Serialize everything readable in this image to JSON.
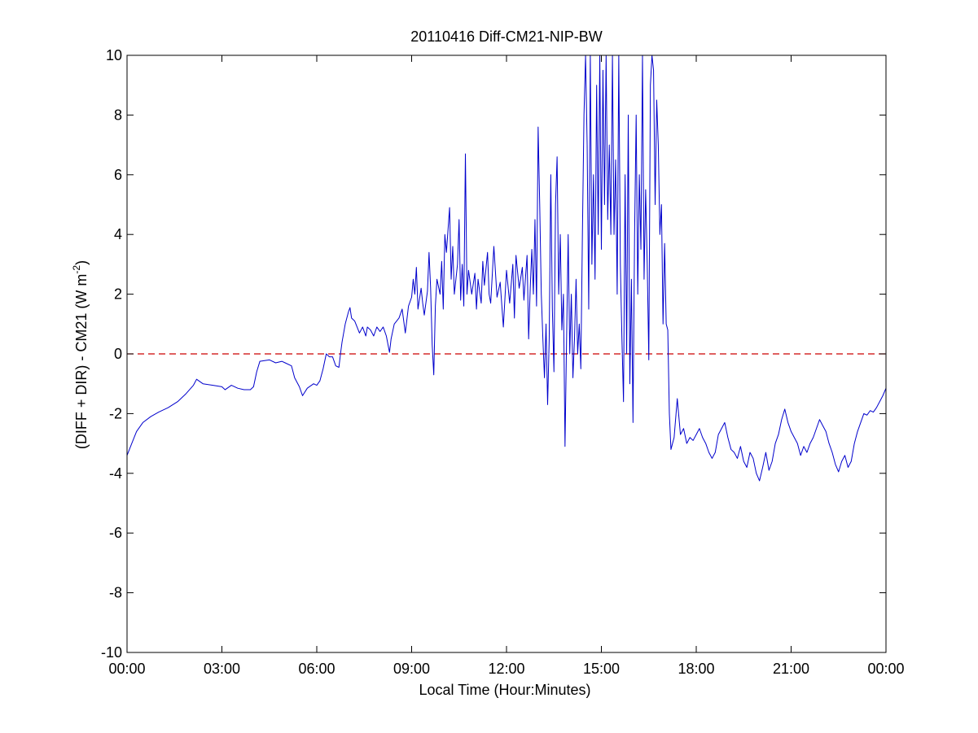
{
  "chart_data": {
    "type": "line",
    "title": "20110416 Diff-CM21-NIP-BW",
    "xlabel": "Local Time (Hour:Minutes)",
    "ylabel": {
      "text": "(DIFF + DIR) - CM21 (W m",
      "superscript": "-2",
      "suffix": ")"
    },
    "ylim": [
      -10,
      10
    ],
    "xlim_hours": [
      0,
      24
    ],
    "x_tick_labels": [
      "00:00",
      "03:00",
      "06:00",
      "09:00",
      "12:00",
      "15:00",
      "18:00",
      "21:00",
      "00:00"
    ],
    "y_tick_labels": [
      "-10",
      "-8",
      "-6",
      "-4",
      "-2",
      "0",
      "2",
      "4",
      "6",
      "8",
      "10"
    ],
    "grid": false,
    "reference_line": {
      "y": 0,
      "style": "dashed",
      "color": "#cc0000"
    },
    "series": [
      {
        "color": "#0000cc",
        "points": [
          [
            0.0,
            -3.4
          ],
          [
            0.15,
            -3.0
          ],
          [
            0.3,
            -2.6
          ],
          [
            0.5,
            -2.3
          ],
          [
            0.75,
            -2.1
          ],
          [
            1.0,
            -1.95
          ],
          [
            1.3,
            -1.8
          ],
          [
            1.6,
            -1.6
          ],
          [
            1.85,
            -1.35
          ],
          [
            2.1,
            -1.05
          ],
          [
            2.2,
            -0.85
          ],
          [
            2.4,
            -1.0
          ],
          [
            2.7,
            -1.05
          ],
          [
            3.0,
            -1.1
          ],
          [
            3.1,
            -1.2
          ],
          [
            3.3,
            -1.05
          ],
          [
            3.5,
            -1.15
          ],
          [
            3.7,
            -1.2
          ],
          [
            3.9,
            -1.2
          ],
          [
            4.0,
            -1.1
          ],
          [
            4.1,
            -0.6
          ],
          [
            4.2,
            -0.25
          ],
          [
            4.5,
            -0.2
          ],
          [
            4.7,
            -0.3
          ],
          [
            4.9,
            -0.25
          ],
          [
            5.0,
            -0.3
          ],
          [
            5.2,
            -0.4
          ],
          [
            5.3,
            -0.8
          ],
          [
            5.45,
            -1.1
          ],
          [
            5.55,
            -1.4
          ],
          [
            5.7,
            -1.15
          ],
          [
            5.9,
            -1.0
          ],
          [
            6.0,
            -1.05
          ],
          [
            6.1,
            -0.9
          ],
          [
            6.2,
            -0.5
          ],
          [
            6.3,
            0.0
          ],
          [
            6.4,
            -0.1
          ],
          [
            6.5,
            -0.1
          ],
          [
            6.6,
            -0.4
          ],
          [
            6.7,
            -0.45
          ],
          [
            6.75,
            0.0
          ],
          [
            6.8,
            0.4
          ],
          [
            6.9,
            1.0
          ],
          [
            7.0,
            1.4
          ],
          [
            7.05,
            1.55
          ],
          [
            7.1,
            1.2
          ],
          [
            7.2,
            1.1
          ],
          [
            7.35,
            0.7
          ],
          [
            7.45,
            0.9
          ],
          [
            7.55,
            0.6
          ],
          [
            7.6,
            0.9
          ],
          [
            7.7,
            0.8
          ],
          [
            7.8,
            0.6
          ],
          [
            7.9,
            0.9
          ],
          [
            8.0,
            0.75
          ],
          [
            8.1,
            0.9
          ],
          [
            8.2,
            0.6
          ],
          [
            8.3,
            0.05
          ],
          [
            8.35,
            0.5
          ],
          [
            8.45,
            1.0
          ],
          [
            8.6,
            1.2
          ],
          [
            8.7,
            1.5
          ],
          [
            8.8,
            0.7
          ],
          [
            8.9,
            1.6
          ],
          [
            9.0,
            1.9
          ],
          [
            9.05,
            2.5
          ],
          [
            9.1,
            2.0
          ],
          [
            9.15,
            2.9
          ],
          [
            9.2,
            1.5
          ],
          [
            9.3,
            2.2
          ],
          [
            9.35,
            1.7
          ],
          [
            9.4,
            1.3
          ],
          [
            9.5,
            2.1
          ],
          [
            9.55,
            3.4
          ],
          [
            9.6,
            2.2
          ],
          [
            9.65,
            0.3
          ],
          [
            9.7,
            -0.7
          ],
          [
            9.75,
            1.6
          ],
          [
            9.8,
            2.5
          ],
          [
            9.9,
            2.0
          ],
          [
            9.95,
            3.1
          ],
          [
            10.0,
            1.5
          ],
          [
            10.05,
            4.0
          ],
          [
            10.1,
            3.4
          ],
          [
            10.2,
            4.9
          ],
          [
            10.25,
            2.5
          ],
          [
            10.3,
            3.6
          ],
          [
            10.35,
            2.0
          ],
          [
            10.45,
            3.0
          ],
          [
            10.5,
            4.5
          ],
          [
            10.55,
            1.8
          ],
          [
            10.6,
            3.0
          ],
          [
            10.65,
            1.6
          ],
          [
            10.7,
            6.7
          ],
          [
            10.75,
            2.0
          ],
          [
            10.8,
            2.8
          ],
          [
            10.9,
            2.0
          ],
          [
            11.0,
            2.7
          ],
          [
            11.05,
            1.5
          ],
          [
            11.1,
            2.5
          ],
          [
            11.2,
            1.7
          ],
          [
            11.25,
            3.1
          ],
          [
            11.3,
            2.3
          ],
          [
            11.4,
            3.4
          ],
          [
            11.45,
            2.0
          ],
          [
            11.5,
            1.7
          ],
          [
            11.6,
            3.6
          ],
          [
            11.7,
            1.9
          ],
          [
            11.8,
            2.4
          ],
          [
            11.9,
            0.9
          ],
          [
            12.0,
            2.8
          ],
          [
            12.1,
            1.7
          ],
          [
            12.2,
            3.0
          ],
          [
            12.25,
            1.2
          ],
          [
            12.3,
            3.3
          ],
          [
            12.4,
            2.2
          ],
          [
            12.5,
            2.9
          ],
          [
            12.55,
            1.8
          ],
          [
            12.65,
            3.3
          ],
          [
            12.7,
            0.5
          ],
          [
            12.75,
            2.2
          ],
          [
            12.8,
            3.5
          ],
          [
            12.85,
            2.0
          ],
          [
            12.9,
            4.5
          ],
          [
            12.95,
            1.6
          ],
          [
            13.0,
            7.6
          ],
          [
            13.05,
            5.0
          ],
          [
            13.1,
            2.0
          ],
          [
            13.15,
            0.5
          ],
          [
            13.2,
            -0.8
          ],
          [
            13.25,
            1.0
          ],
          [
            13.3,
            -1.7
          ],
          [
            13.35,
            0.5
          ],
          [
            13.4,
            6.0
          ],
          [
            13.45,
            1.5
          ],
          [
            13.5,
            -0.6
          ],
          [
            13.55,
            5.0
          ],
          [
            13.6,
            6.6
          ],
          [
            13.65,
            2.0
          ],
          [
            13.7,
            4.0
          ],
          [
            13.75,
            0.8
          ],
          [
            13.8,
            2.0
          ],
          [
            13.85,
            -3.1
          ],
          [
            13.9,
            0.5
          ],
          [
            13.95,
            4.0
          ],
          [
            14.0,
            0.0
          ],
          [
            14.05,
            2.0
          ],
          [
            14.1,
            -0.8
          ],
          [
            14.15,
            0.5
          ],
          [
            14.2,
            2.5
          ],
          [
            14.25,
            0.0
          ],
          [
            14.3,
            1.0
          ],
          [
            14.35,
            -0.5
          ],
          [
            14.4,
            4.0
          ],
          [
            14.45,
            8.0
          ],
          [
            14.5,
            10.0
          ],
          [
            14.55,
            7.0
          ],
          [
            14.6,
            1.5
          ],
          [
            14.65,
            10.0
          ],
          [
            14.7,
            3.0
          ],
          [
            14.75,
            6.0
          ],
          [
            14.8,
            2.5
          ],
          [
            14.85,
            9.0
          ],
          [
            14.9,
            4.0
          ],
          [
            14.95,
            10.0
          ],
          [
            15.0,
            3.5
          ],
          [
            15.05,
            9.5
          ],
          [
            15.1,
            5.0
          ],
          [
            15.15,
            10.0
          ],
          [
            15.2,
            4.5
          ],
          [
            15.25,
            7.0
          ],
          [
            15.3,
            4.0
          ],
          [
            15.35,
            10.0
          ],
          [
            15.4,
            4.0
          ],
          [
            15.45,
            6.5
          ],
          [
            15.5,
            2.0
          ],
          [
            15.55,
            10.0
          ],
          [
            15.6,
            3.0
          ],
          [
            15.65,
            0.5
          ],
          [
            15.7,
            -1.6
          ],
          [
            15.75,
            6.0
          ],
          [
            15.8,
            0.0
          ],
          [
            15.85,
            8.0
          ],
          [
            15.9,
            -1.0
          ],
          [
            15.95,
            2.5
          ],
          [
            16.0,
            -2.3
          ],
          [
            16.05,
            4.0
          ],
          [
            16.1,
            8.0
          ],
          [
            16.15,
            2.0
          ],
          [
            16.2,
            6.0
          ],
          [
            16.25,
            3.5
          ],
          [
            16.3,
            10.0
          ],
          [
            16.35,
            2.5
          ],
          [
            16.4,
            5.5
          ],
          [
            16.45,
            3.0
          ],
          [
            16.5,
            -0.2
          ],
          [
            16.55,
            9.0
          ],
          [
            16.6,
            10.0
          ],
          [
            16.65,
            9.5
          ],
          [
            16.7,
            5.0
          ],
          [
            16.75,
            8.5
          ],
          [
            16.8,
            7.0
          ],
          [
            16.85,
            4.0
          ],
          [
            16.9,
            5.0
          ],
          [
            16.95,
            1.0
          ],
          [
            17.0,
            3.7
          ],
          [
            17.05,
            1.0
          ],
          [
            17.1,
            0.8
          ],
          [
            17.15,
            -2.0
          ],
          [
            17.2,
            -3.2
          ],
          [
            17.3,
            -2.8
          ],
          [
            17.4,
            -1.5
          ],
          [
            17.5,
            -2.7
          ],
          [
            17.6,
            -2.5
          ],
          [
            17.7,
            -3.0
          ],
          [
            17.8,
            -2.8
          ],
          [
            17.9,
            -2.9
          ],
          [
            18.0,
            -2.7
          ],
          [
            18.1,
            -2.5
          ],
          [
            18.2,
            -2.8
          ],
          [
            18.3,
            -3.0
          ],
          [
            18.4,
            -3.3
          ],
          [
            18.5,
            -3.5
          ],
          [
            18.6,
            -3.3
          ],
          [
            18.7,
            -2.7
          ],
          [
            18.8,
            -2.5
          ],
          [
            18.9,
            -2.3
          ],
          [
            19.0,
            -2.8
          ],
          [
            19.1,
            -3.2
          ],
          [
            19.2,
            -3.3
          ],
          [
            19.3,
            -3.5
          ],
          [
            19.4,
            -3.1
          ],
          [
            19.5,
            -3.6
          ],
          [
            19.6,
            -3.8
          ],
          [
            19.7,
            -3.3
          ],
          [
            19.8,
            -3.5
          ],
          [
            19.9,
            -4.0
          ],
          [
            20.0,
            -4.25
          ],
          [
            20.1,
            -3.8
          ],
          [
            20.2,
            -3.3
          ],
          [
            20.3,
            -3.9
          ],
          [
            20.4,
            -3.6
          ],
          [
            20.5,
            -3.0
          ],
          [
            20.6,
            -2.7
          ],
          [
            20.7,
            -2.2
          ],
          [
            20.8,
            -1.85
          ],
          [
            20.9,
            -2.3
          ],
          [
            21.0,
            -2.6
          ],
          [
            21.1,
            -2.8
          ],
          [
            21.2,
            -3.0
          ],
          [
            21.3,
            -3.4
          ],
          [
            21.4,
            -3.1
          ],
          [
            21.5,
            -3.3
          ],
          [
            21.6,
            -3.0
          ],
          [
            21.7,
            -2.8
          ],
          [
            21.8,
            -2.5
          ],
          [
            21.9,
            -2.2
          ],
          [
            22.0,
            -2.4
          ],
          [
            22.1,
            -2.6
          ],
          [
            22.2,
            -3.0
          ],
          [
            22.3,
            -3.3
          ],
          [
            22.4,
            -3.7
          ],
          [
            22.5,
            -3.95
          ],
          [
            22.6,
            -3.6
          ],
          [
            22.7,
            -3.4
          ],
          [
            22.8,
            -3.8
          ],
          [
            22.9,
            -3.6
          ],
          [
            23.0,
            -3.0
          ],
          [
            23.1,
            -2.6
          ],
          [
            23.2,
            -2.3
          ],
          [
            23.3,
            -2.0
          ],
          [
            23.4,
            -2.05
          ],
          [
            23.5,
            -1.9
          ],
          [
            23.6,
            -1.95
          ],
          [
            23.7,
            -1.8
          ],
          [
            23.8,
            -1.6
          ],
          [
            23.9,
            -1.4
          ],
          [
            24.0,
            -1.15
          ]
        ]
      }
    ]
  }
}
